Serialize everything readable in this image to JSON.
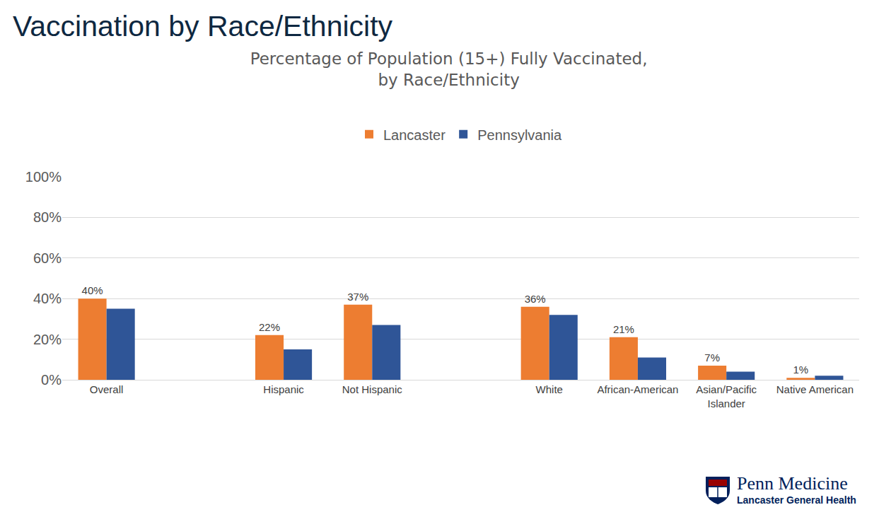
{
  "heading": "Vaccination by Race/Ethnicity",
  "chart_data": {
    "type": "bar",
    "title": "Percentage of Population (15+) Fully Vaccinated,\nby Race/Ethnicity",
    "categories": [
      "Overall",
      null,
      "Hispanic",
      "Not Hispanic",
      null,
      "White",
      "African-American",
      "Asian/Pacific\nIslander",
      "Native American"
    ],
    "series": [
      {
        "name": "Lancaster",
        "color": "#ED7D31",
        "values": [
          40,
          null,
          22,
          37,
          null,
          36,
          21,
          7,
          1
        ],
        "data_labels": true,
        "value_labels": [
          "40%",
          null,
          "22%",
          "37%",
          null,
          "36%",
          "21%",
          "7%",
          "1%"
        ]
      },
      {
        "name": "Pennsylvania",
        "color": "#2F5597",
        "values": [
          35,
          null,
          15,
          27,
          null,
          32,
          11,
          4,
          2
        ]
      }
    ],
    "ylim": [
      0,
      100
    ],
    "yticks": [
      {
        "value": 0,
        "label": "0%"
      },
      {
        "value": 20,
        "label": "20%"
      },
      {
        "value": 40,
        "label": "40%"
      },
      {
        "value": 60,
        "label": "60%"
      },
      {
        "value": 80,
        "label": "80%"
      },
      {
        "value": 100,
        "label": "100%"
      }
    ],
    "grid": true,
    "legend": "top"
  },
  "logo": {
    "name": "Penn Medicine",
    "subtitle": "Lancaster General Health"
  }
}
